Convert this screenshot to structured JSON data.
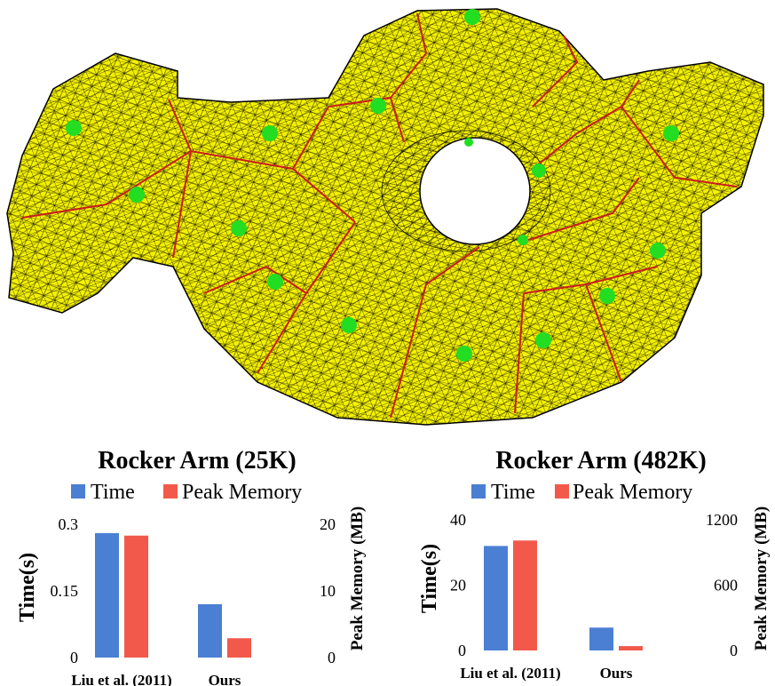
{
  "figure": {
    "mesh_alt": "Rocker Arm mesh"
  },
  "colors": {
    "time": "#4a7fd3",
    "memory": "#f2594b",
    "mesh": "#f4f100",
    "seed": "#22dd22",
    "boundary": "#c81e1e"
  },
  "chart_data": [
    {
      "type": "bar",
      "title": "Rocker Arm (25K)",
      "categories": [
        "Liu et al. (2011)",
        "Ours"
      ],
      "series": [
        {
          "name": "Time",
          "axis": "left",
          "values": [
            0.28,
            0.12
          ]
        },
        {
          "name": "Peak Memory",
          "axis": "right",
          "values": [
            18.3,
            2.9
          ]
        }
      ],
      "ylabel": "Time(s)",
      "ylabel_right": "Peak Memory (MB)",
      "ylim": [
        0,
        0.3
      ],
      "ylim_right": [
        0,
        20
      ],
      "yticks": [
        "0",
        "0.15",
        "0.3"
      ],
      "yticks_right": [
        "0",
        "10",
        "20"
      ],
      "legend": "top"
    },
    {
      "type": "bar",
      "title": "Rocker Arm (482K)",
      "categories": [
        "Liu et al. (2011)",
        "Ours"
      ],
      "series": [
        {
          "name": "Time",
          "axis": "left",
          "values": [
            32,
            7
          ]
        },
        {
          "name": "Peak Memory",
          "axis": "right",
          "values": [
            1010,
            40
          ]
        }
      ],
      "ylabel": "Time(s)",
      "ylabel_right": "Peak Memory (MB)",
      "ylim": [
        0,
        40
      ],
      "ylim_right": [
        0,
        1200
      ],
      "yticks": [
        "0",
        "20",
        "40"
      ],
      "yticks_right": [
        "0",
        "600",
        "1200"
      ],
      "legend": "top"
    }
  ]
}
